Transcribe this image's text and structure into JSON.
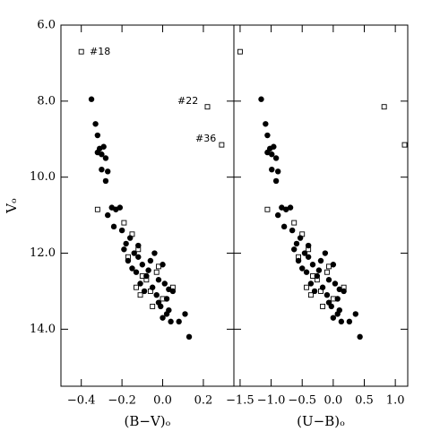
{
  "chart_data": [
    {
      "type": "scatter",
      "xlabel": "(B−V)ₒ",
      "ylabel": "Vₒ",
      "xlim": [
        -0.5,
        0.35
      ],
      "ylim": [
        15.5,
        6.0
      ],
      "xticks": [
        {
          "value": -0.4,
          "label": "−0.4"
        },
        {
          "value": -0.2,
          "label": "−0.2"
        },
        {
          "value": 0,
          "label": "0.0"
        },
        {
          "value": 0.2,
          "label": "0.2"
        }
      ],
      "yticks": [
        {
          "value": 6,
          "label": "6.0"
        },
        {
          "value": 8,
          "label": "8.0"
        },
        {
          "value": 10,
          "label": "10.0"
        },
        {
          "value": 12,
          "label": "12.0"
        },
        {
          "value": 14,
          "label": "14.0"
        }
      ],
      "annotations": [
        "#18",
        "#22",
        "#36"
      ],
      "series": [
        {
          "marker": "circle",
          "color": "#000000",
          "x": [
            -0.35,
            -0.33,
            -0.32,
            -0.31,
            -0.29,
            -0.3,
            -0.32,
            -0.28,
            -0.3,
            -0.27,
            -0.28,
            -0.25,
            -0.23,
            -0.21,
            -0.27,
            -0.24,
            -0.2,
            -0.18,
            -0.16,
            -0.19,
            -0.14,
            -0.12,
            -0.17,
            -0.1,
            -0.13,
            -0.15,
            -0.08,
            -0.11,
            -0.06,
            -0.04,
            -0.05,
            -0.09,
            -0.02,
            0.0,
            0.01,
            -0.03,
            0.02,
            -0.01,
            0.03,
            0.0,
            0.04,
            0.02,
            -0.02,
            0.05,
            0.08,
            0.11,
            0.13,
            -0.07,
            0.03,
            -0.12
          ],
          "values": [
            7.95,
            8.6,
            8.9,
            9.25,
            9.2,
            9.4,
            9.35,
            9.5,
            9.8,
            9.85,
            10.1,
            10.8,
            10.85,
            10.8,
            11.0,
            11.3,
            11.4,
            11.75,
            11.6,
            11.9,
            12.0,
            11.8,
            12.2,
            12.3,
            12.5,
            12.4,
            12.6,
            12.8,
            12.2,
            12.0,
            12.9,
            13.0,
            12.7,
            12.3,
            12.8,
            13.1,
            13.2,
            13.4,
            13.5,
            13.7,
            13.8,
            13.6,
            13.3,
            13.0,
            13.8,
            13.6,
            14.2,
            12.45,
            12.95,
            12.1
          ]
        },
        {
          "marker": "square",
          "color": "#000000",
          "x": [
            -0.4,
            0.22,
            0.29,
            -0.32,
            -0.19,
            -0.15,
            -0.12,
            -0.17,
            -0.1,
            -0.13,
            -0.06,
            -0.08,
            -0.03,
            -0.05,
            0.0,
            0.05,
            -0.11,
            -0.02
          ],
          "values": [
            6.7,
            8.15,
            9.15,
            10.85,
            11.2,
            11.5,
            11.9,
            12.1,
            12.6,
            12.9,
            13.0,
            12.7,
            12.5,
            13.4,
            13.2,
            12.9,
            13.1,
            12.35
          ]
        }
      ]
    },
    {
      "type": "scatter",
      "xlabel": "(U−B)ₒ",
      "xlim": [
        -1.6,
        1.2
      ],
      "ylim": [
        15.5,
        6.0
      ],
      "xticks": [
        {
          "value": -1.5,
          "label": "−1.5"
        },
        {
          "value": -1,
          "label": "−1.0"
        },
        {
          "value": -0.5,
          "label": "−0.5"
        },
        {
          "value": 0,
          "label": "0.0"
        },
        0.5,
        {
          "value": 1,
          "label": "1.0"
        }
      ],
      "series": [
        {
          "marker": "circle",
          "color": "#000000",
          "x": [
            -1.16,
            -1.09,
            -1.06,
            -1.02,
            -0.96,
            -0.99,
            -1.06,
            -0.92,
            -0.99,
            -0.89,
            -0.92,
            -0.83,
            -0.76,
            -0.69,
            -0.89,
            -0.79,
            -0.66,
            -0.59,
            -0.53,
            -0.63,
            -0.46,
            -0.4,
            -0.56,
            -0.33,
            -0.43,
            -0.5,
            -0.26,
            -0.36,
            -0.2,
            -0.13,
            -0.17,
            -0.3,
            -0.07,
            0.0,
            0.03,
            -0.1,
            0.07,
            -0.03,
            0.1,
            0.0,
            0.13,
            0.07,
            -0.07,
            0.17,
            0.26,
            0.36,
            0.43,
            -0.23,
            0.1,
            -0.4
          ],
          "values": [
            7.95,
            8.6,
            8.9,
            9.25,
            9.2,
            9.4,
            9.35,
            9.5,
            9.8,
            9.85,
            10.1,
            10.8,
            10.85,
            10.8,
            11.0,
            11.3,
            11.4,
            11.75,
            11.6,
            11.9,
            12.0,
            11.8,
            12.2,
            12.3,
            12.5,
            12.4,
            12.6,
            12.8,
            12.2,
            12.0,
            12.9,
            13.0,
            12.7,
            12.3,
            12.8,
            13.1,
            13.2,
            13.4,
            13.5,
            13.7,
            13.8,
            13.6,
            13.3,
            13.0,
            13.8,
            13.6,
            14.2,
            12.45,
            12.95,
            12.1
          ]
        },
        {
          "marker": "square",
          "color": "#000000",
          "x": [
            -1.5,
            0.82,
            1.15,
            -1.06,
            -0.63,
            -0.5,
            -0.4,
            -0.56,
            -0.33,
            -0.43,
            -0.2,
            -0.26,
            -0.1,
            -0.17,
            0.0,
            0.17,
            -0.36,
            -0.07
          ],
          "values": [
            6.7,
            8.15,
            9.15,
            10.85,
            11.2,
            11.5,
            11.9,
            12.1,
            12.6,
            12.9,
            13.0,
            12.7,
            12.5,
            13.4,
            13.2,
            12.9,
            13.1,
            12.35
          ]
        }
      ]
    }
  ]
}
